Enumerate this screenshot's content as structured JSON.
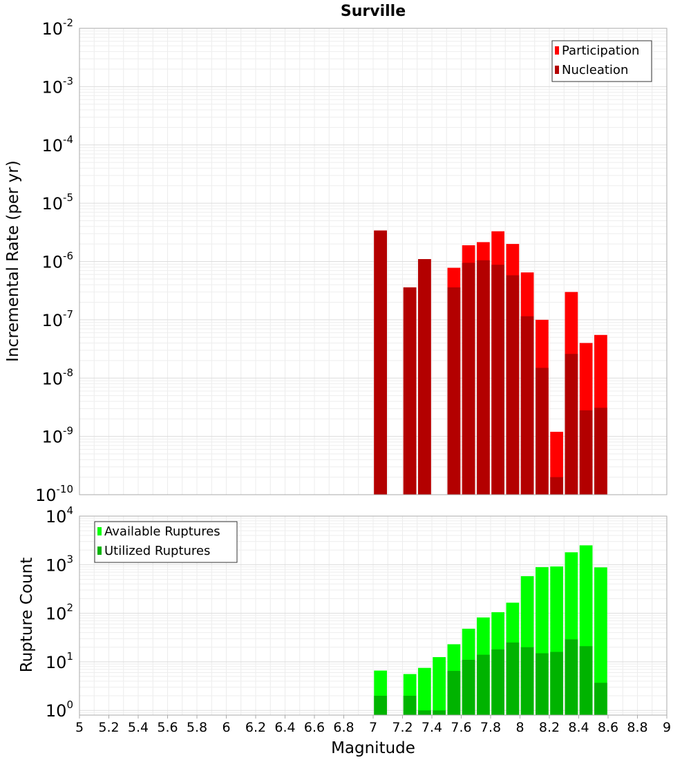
{
  "chart_data": [
    {
      "type": "bar",
      "title": "Surville",
      "ylabel": "Incremental Rate (per yr)",
      "yscale": "log",
      "ylim": [
        1e-10,
        0.01
      ],
      "xlim": [
        5,
        9
      ],
      "grid": true,
      "legend_placement": "top-right",
      "series": [
        {
          "name": "Participation",
          "color": "#ff0000",
          "points": [
            {
              "x": 7.05,
              "y": 3.4e-06
            },
            {
              "x": 7.25,
              "y": 3.6e-07
            },
            {
              "x": 7.35,
              "y": 1.1e-06
            },
            {
              "x": 7.55,
              "y": 7.8e-07
            },
            {
              "x": 7.65,
              "y": 1.9e-06
            },
            {
              "x": 7.75,
              "y": 2.15e-06
            },
            {
              "x": 7.85,
              "y": 3.3e-06
            },
            {
              "x": 7.95,
              "y": 2e-06
            },
            {
              "x": 8.05,
              "y": 6.5e-07
            },
            {
              "x": 8.15,
              "y": 1e-07
            },
            {
              "x": 8.25,
              "y": 1.2e-09
            },
            {
              "x": 8.35,
              "y": 3e-07
            },
            {
              "x": 8.45,
              "y": 4e-08
            },
            {
              "x": 8.55,
              "y": 5.5e-08
            }
          ]
        },
        {
          "name": "Nucleation",
          "color": "#b30000",
          "points": [
            {
              "x": 7.05,
              "y": 3.4e-06
            },
            {
              "x": 7.25,
              "y": 3.6e-07
            },
            {
              "x": 7.35,
              "y": 1.1e-06
            },
            {
              "x": 7.55,
              "y": 3.6e-07
            },
            {
              "x": 7.65,
              "y": 9.5e-07
            },
            {
              "x": 7.75,
              "y": 1.05e-06
            },
            {
              "x": 7.85,
              "y": 8.8e-07
            },
            {
              "x": 7.95,
              "y": 5.8e-07
            },
            {
              "x": 8.05,
              "y": 1.15e-07
            },
            {
              "x": 8.15,
              "y": 1.5e-08
            },
            {
              "x": 8.25,
              "y": 2e-10
            },
            {
              "x": 8.35,
              "y": 2.6e-08
            },
            {
              "x": 8.45,
              "y": 2.8e-09
            },
            {
              "x": 8.55,
              "y": 3.1e-09
            }
          ]
        }
      ]
    },
    {
      "type": "bar",
      "xlabel": "Magnitude",
      "ylabel": "Rupture Count",
      "yscale": "log",
      "ylim": [
        0.8,
        10000
      ],
      "xlim": [
        5,
        9
      ],
      "grid": true,
      "legend_placement": "top-left",
      "xticks": [
        "5",
        "5.2",
        "5.4",
        "5.6",
        "5.8",
        "6",
        "6.2",
        "6.4",
        "6.6",
        "6.8",
        "7",
        "7.2",
        "7.4",
        "7.6",
        "7.8",
        "8",
        "8.2",
        "8.4",
        "8.6",
        "8.8",
        "9"
      ],
      "series": [
        {
          "name": "Available Ruptures",
          "color": "#00ff00",
          "points": [
            {
              "x": 7.05,
              "y": 6.6
            },
            {
              "x": 7.25,
              "y": 5.6
            },
            {
              "x": 7.35,
              "y": 7.5
            },
            {
              "x": 7.45,
              "y": 12.5
            },
            {
              "x": 7.55,
              "y": 23
            },
            {
              "x": 7.65,
              "y": 48
            },
            {
              "x": 7.75,
              "y": 82
            },
            {
              "x": 7.85,
              "y": 105
            },
            {
              "x": 7.95,
              "y": 165
            },
            {
              "x": 8.05,
              "y": 580
            },
            {
              "x": 8.15,
              "y": 890
            },
            {
              "x": 8.25,
              "y": 920
            },
            {
              "x": 8.35,
              "y": 1800
            },
            {
              "x": 8.45,
              "y": 2500
            },
            {
              "x": 8.55,
              "y": 880
            }
          ]
        },
        {
          "name": "Utilized Ruptures",
          "color": "#00b300",
          "points": [
            {
              "x": 7.05,
              "y": 2
            },
            {
              "x": 7.25,
              "y": 2
            },
            {
              "x": 7.35,
              "y": 1
            },
            {
              "x": 7.45,
              "y": 1
            },
            {
              "x": 7.55,
              "y": 6.5
            },
            {
              "x": 7.65,
              "y": 11
            },
            {
              "x": 7.75,
              "y": 14
            },
            {
              "x": 7.85,
              "y": 18
            },
            {
              "x": 7.95,
              "y": 25
            },
            {
              "x": 8.05,
              "y": 20
            },
            {
              "x": 8.15,
              "y": 15
            },
            {
              "x": 8.25,
              "y": 16
            },
            {
              "x": 8.35,
              "y": 29
            },
            {
              "x": 8.45,
              "y": 21
            },
            {
              "x": 8.55,
              "y": 3.7
            }
          ]
        }
      ]
    }
  ]
}
